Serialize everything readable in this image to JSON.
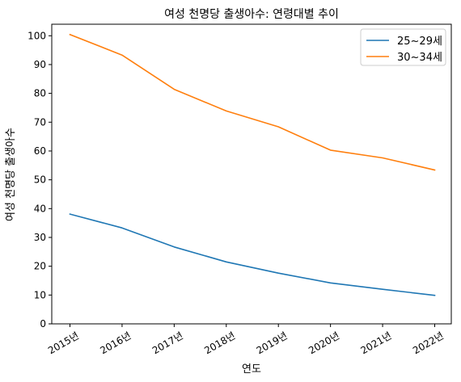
{
  "chart_data": {
    "type": "line",
    "title": "여성 천명당 출생아수: 연령대별 추이",
    "xlabel": "연도",
    "ylabel": "여성 천명당 출생아수",
    "categories": [
      "2015년",
      "2016년",
      "2017년",
      "2018년",
      "2019년",
      "2020년",
      "2021년",
      "2022년"
    ],
    "ylim": [
      0,
      104
    ],
    "yticks": [
      0,
      10,
      20,
      30,
      40,
      50,
      60,
      70,
      80,
      90,
      100
    ],
    "series": [
      {
        "name": "25~29세",
        "color": "#1f77b4",
        "values": [
          38.1,
          33.3,
          26.7,
          21.5,
          17.6,
          14.2,
          12.0,
          9.9
        ]
      },
      {
        "name": "30~34세",
        "color": "#ff7f0e",
        "values": [
          100.4,
          93.3,
          81.4,
          73.9,
          68.4,
          60.3,
          57.6,
          53.4
        ]
      }
    ],
    "legend": "top-right",
    "grid": false
  }
}
